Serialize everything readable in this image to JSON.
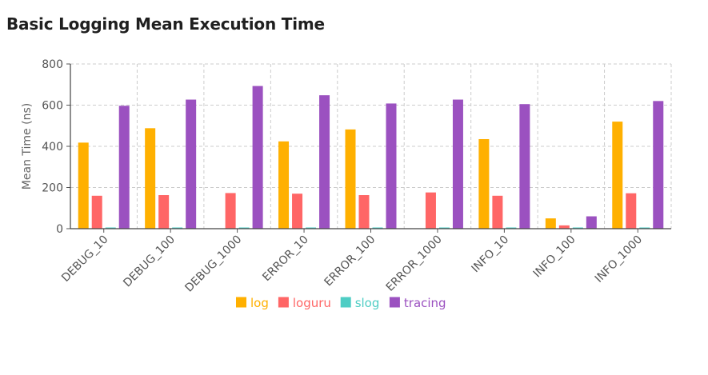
{
  "title": "Basic Logging Mean Execution Time",
  "chart_data": {
    "type": "bar",
    "title": "Basic Logging Mean Execution Time",
    "xlabel": "",
    "ylabel": "Mean Time (ns)",
    "ylim": [
      0,
      800
    ],
    "yticks": [
      0,
      200,
      400,
      600,
      800
    ],
    "grid": true,
    "legend_position": "bottom",
    "categories": [
      "DEBUG_10",
      "DEBUG_100",
      "DEBUG_1000",
      "ERROR_10",
      "ERROR_100",
      "ERROR_1000",
      "INFO_10",
      "INFO_100",
      "INFO_1000"
    ],
    "series": [
      {
        "name": "log",
        "color": "#FFB000",
        "values": [
          418,
          488,
          0,
          424,
          482,
          0,
          435,
          50,
          520
        ]
      },
      {
        "name": "loguru",
        "color": "#FF6666",
        "values": [
          160,
          163,
          173,
          170,
          163,
          176,
          160,
          16,
          172
        ]
      },
      {
        "name": "slog",
        "color": "#4ECDC4",
        "values": [
          3,
          3,
          3,
          4,
          4,
          4,
          4,
          3,
          4
        ]
      },
      {
        "name": "tracing",
        "color": "#9B51C0",
        "values": [
          597,
          627,
          693,
          648,
          608,
          627,
          605,
          60,
          620
        ]
      }
    ]
  }
}
